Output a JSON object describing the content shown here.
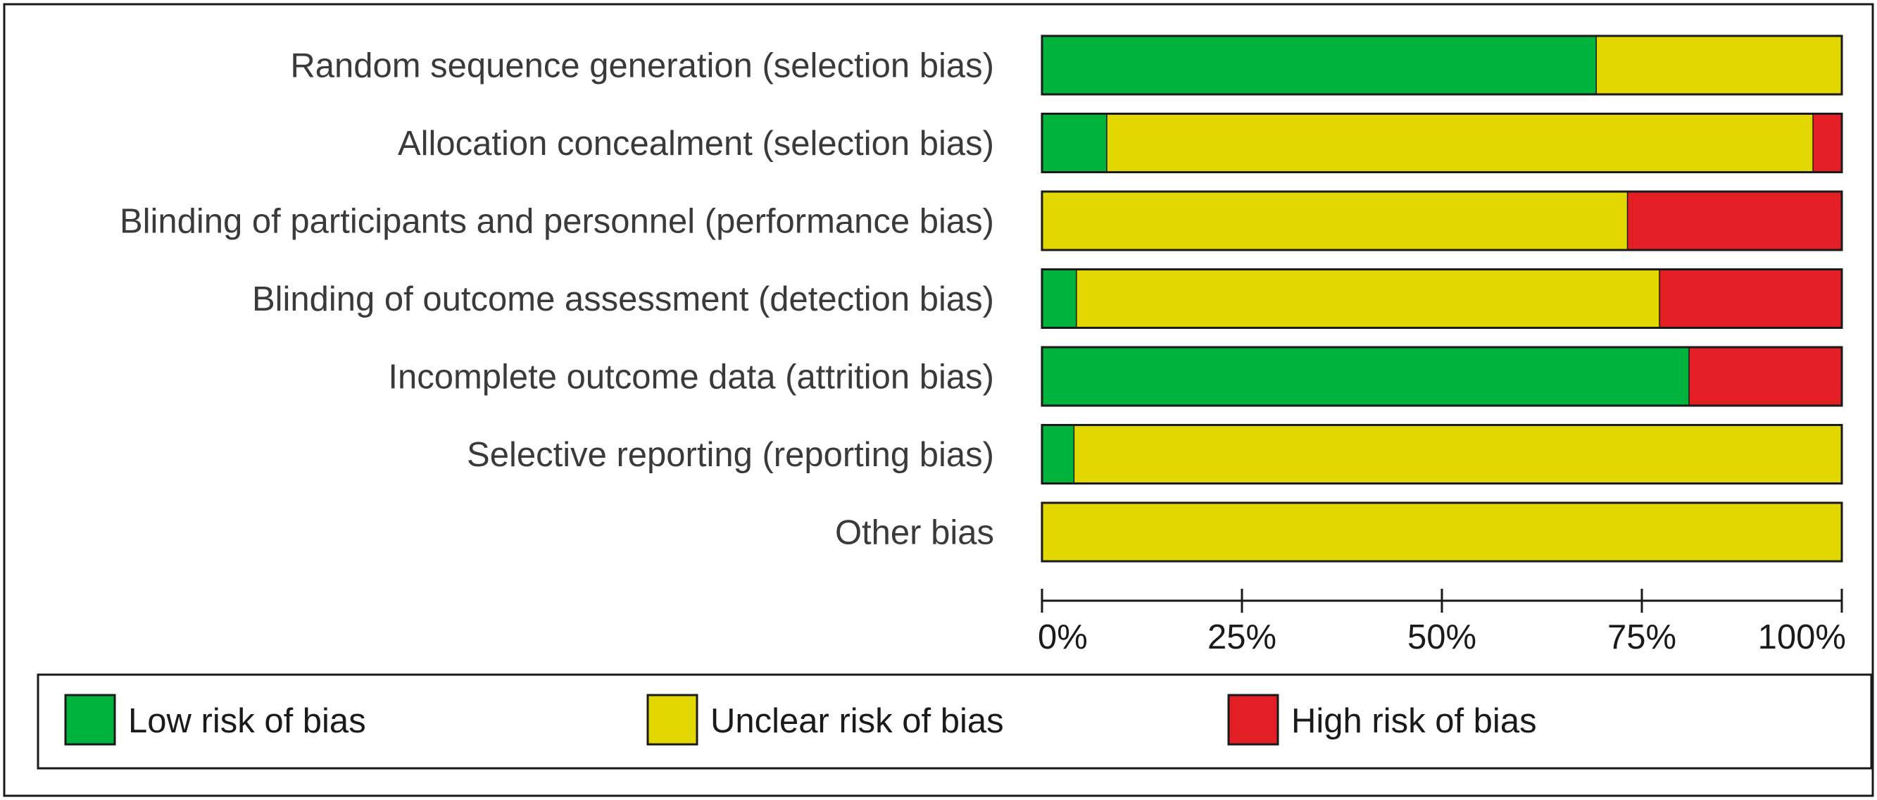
{
  "chart_data": {
    "type": "bar",
    "stacked": true,
    "orientation": "horizontal",
    "categories": [
      "Random sequence generation (selection bias)",
      "Allocation concealment (selection bias)",
      "Blinding of participants and personnel (performance bias)",
      "Blinding of outcome assessment (detection bias)",
      "Incomplete outcome data (attrition bias)",
      "Selective reporting (reporting bias)",
      "Other bias"
    ],
    "series": [
      {
        "name": "Low risk of bias",
        "color": "#00b33c",
        "values": [
          69.3,
          8.1,
          0,
          4.3,
          80.9,
          4.0,
          0
        ]
      },
      {
        "name": "Unclear risk of bias",
        "color": "#e2d800",
        "values": [
          30.7,
          88.3,
          73.2,
          72.9,
          0,
          96.0,
          100
        ]
      },
      {
        "name": "High risk of bias",
        "color": "#e31e24",
        "values": [
          0,
          3.6,
          26.8,
          22.8,
          19.1,
          0,
          0
        ]
      }
    ],
    "xlim": [
      0,
      100
    ],
    "xticks": [
      0,
      25,
      50,
      75,
      100
    ],
    "xtick_labels": [
      "0%",
      "25%",
      "50%",
      "75%",
      "100%"
    ],
    "legend_position": "bottom",
    "grid": false
  }
}
